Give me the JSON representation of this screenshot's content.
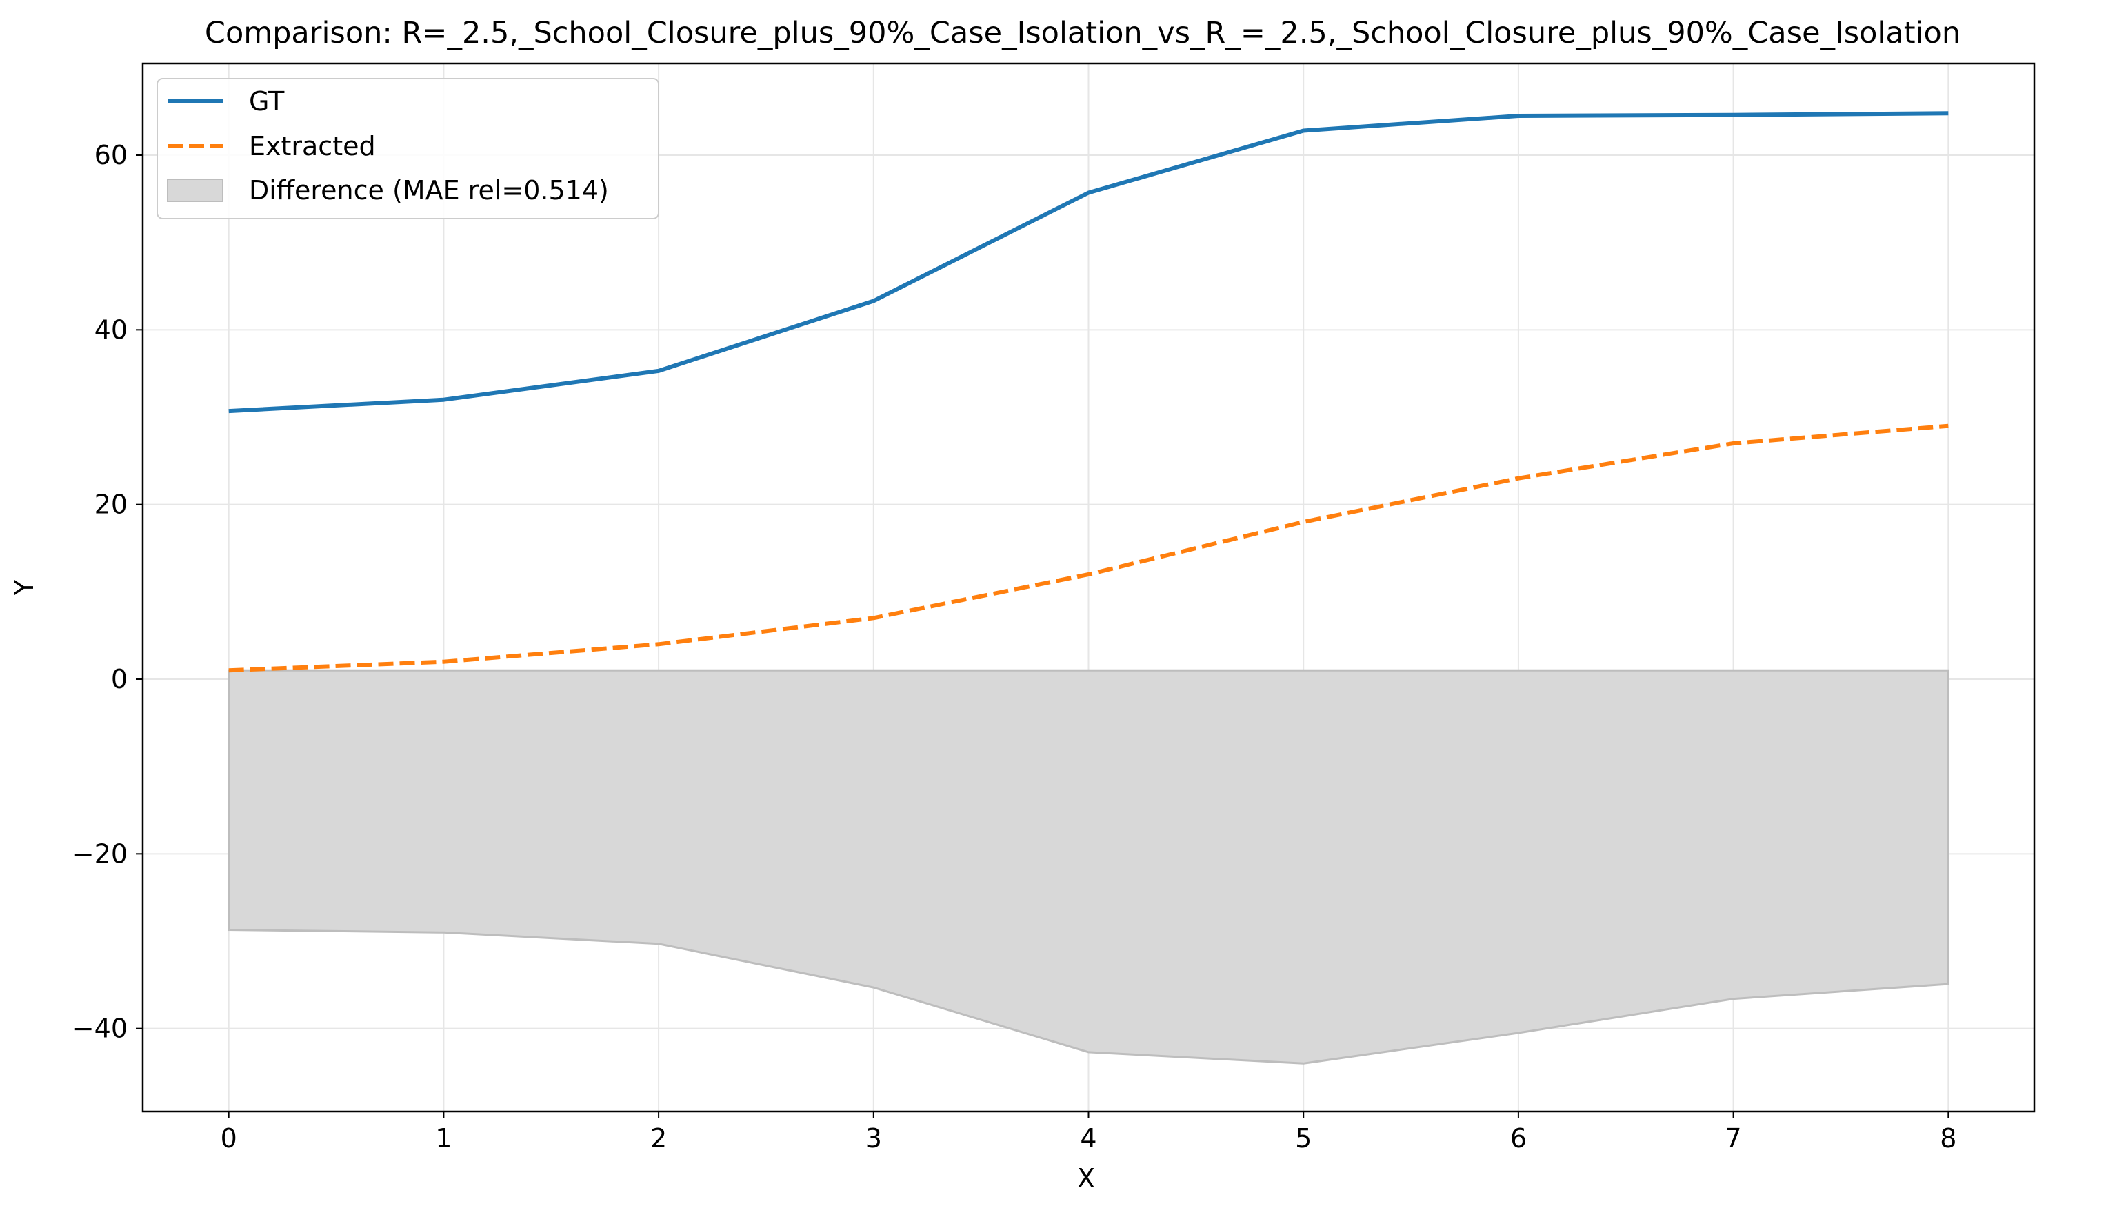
{
  "chart_data": {
    "type": "line",
    "title": "Comparison: R=_2.5,_School_Closure_plus_90%_Case_Isolation_vs_R_=_2.5,_School_Closure_plus_90%_Case_Isolation",
    "xlabel": "X",
    "ylabel": "Y",
    "x": [
      0,
      1,
      2,
      3,
      4,
      5,
      6,
      7,
      8
    ],
    "xlim": [
      -0.4,
      8.4
    ],
    "ylim": [
      -49.5,
      70.5
    ],
    "xticks": [
      0,
      1,
      2,
      3,
      4,
      5,
      6,
      7,
      8
    ],
    "xtick_labels": [
      "0",
      "1",
      "2",
      "3",
      "4",
      "5",
      "6",
      "7",
      "8"
    ],
    "yticks": [
      -40,
      -20,
      0,
      20,
      40,
      60
    ],
    "ytick_labels": [
      "−40",
      "−20",
      "0",
      "20",
      "40",
      "60"
    ],
    "grid": true,
    "legend_position": "top-left",
    "series": [
      {
        "name": "GT",
        "style": "solid",
        "color": "#1f77b4",
        "values": [
          30.7,
          32.0,
          35.3,
          43.3,
          55.7,
          62.8,
          64.5,
          64.6,
          64.8
        ]
      },
      {
        "name": "Extracted",
        "style": "dashed",
        "color": "#ff7f0e",
        "values": [
          1.0,
          2.0,
          4.0,
          7.0,
          12.0,
          18.0,
          23.0,
          27.0,
          29.0
        ]
      }
    ],
    "fill": {
      "name": "Difference (MAE rel=0.514)",
      "color": "#d8d8d8",
      "edge_color": "#bdbdbd",
      "upper": [
        1.0,
        1.0,
        1.0,
        1.0,
        1.0,
        1.0,
        1.0,
        1.0,
        1.0
      ],
      "lower": [
        -28.7,
        -29.0,
        -30.3,
        -35.3,
        -42.7,
        -44.0,
        -40.5,
        -36.6,
        -34.9
      ]
    }
  }
}
